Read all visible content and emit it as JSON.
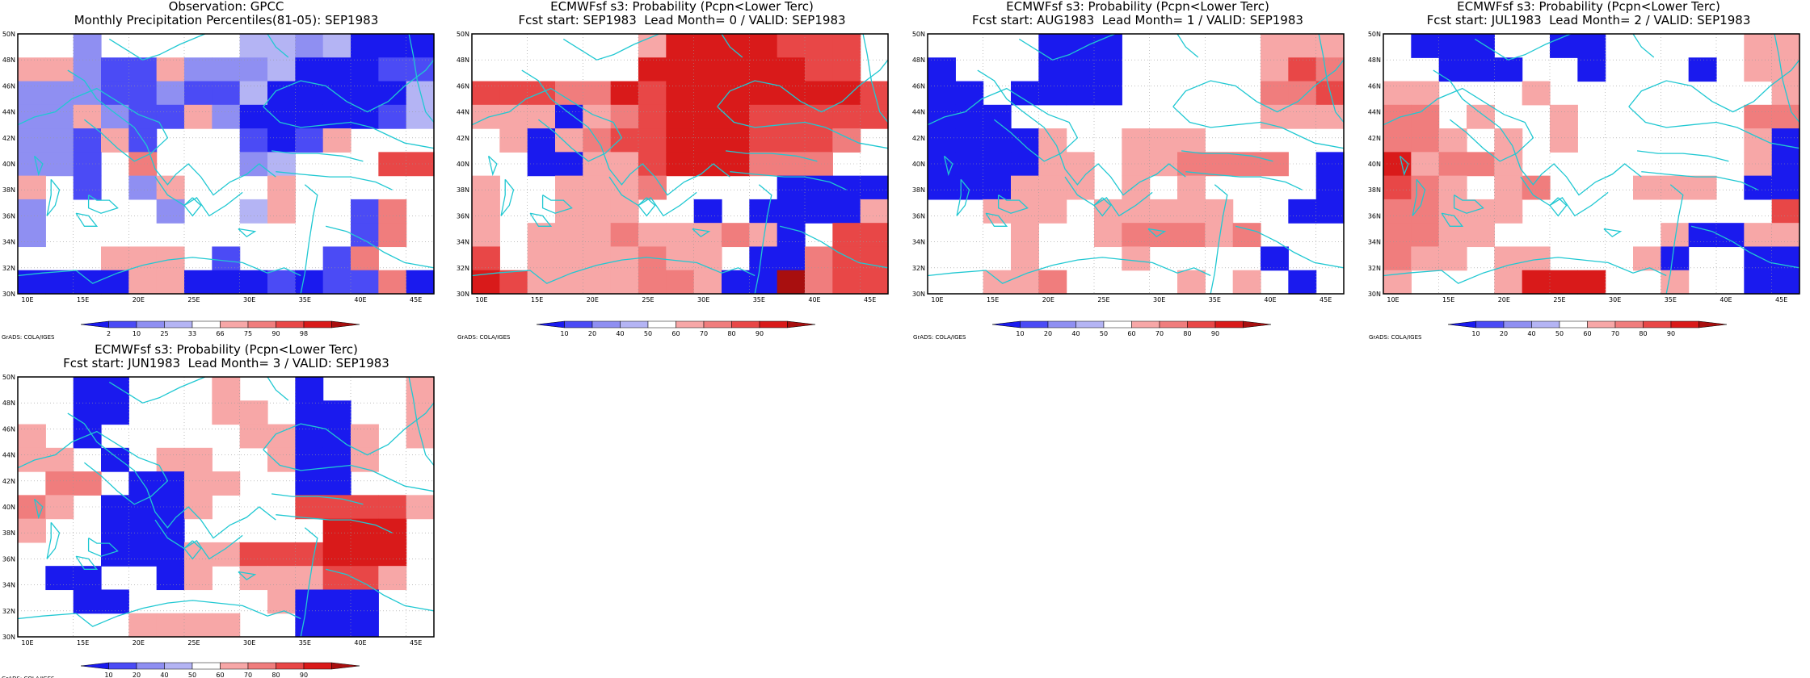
{
  "credit": "GrADS: COLA/IGES",
  "colors": {
    "blue_dark": "#1a1aee",
    "blue_mid": "#4b4bf5",
    "blue_light": "#8f8ff2",
    "blue_pale": "#b4b4f4",
    "red_pale": "#f7a7a7",
    "red_light": "#f07d7d",
    "red_mid": "#e84747",
    "red_strong": "#d91a1a",
    "red_dark": "#a80f0f",
    "coast": "#20c8d2"
  },
  "panels": [
    {
      "title_line1": "Observation: GPCC",
      "title_line2": "Monthly Precipitation Percentiles(81-05): SEP1983",
      "colorbar_labels": [
        "2",
        "10",
        "25",
        "33",
        "66",
        "75",
        "90",
        "98"
      ],
      "lat_labels": [
        "50N",
        "48N",
        "46N",
        "44N",
        "42N",
        "40N",
        "38N",
        "36N",
        "34N",
        "32N",
        "30N"
      ],
      "lon_labels": [
        "10E",
        "15E",
        "20E",
        "25E",
        "30E",
        "35E",
        "40E",
        "45E"
      ]
    },
    {
      "title_line1": "ECMWFsf s3: Probability (Pcpn<Lower Terc)",
      "title_line2": "Fcst start: SEP1983  Lead Month= 0 / VALID: SEP1983",
      "colorbar_labels": [
        "10",
        "20",
        "40",
        "50",
        "60",
        "70",
        "80",
        "90"
      ],
      "lat_labels": [
        "50N",
        "48N",
        "46N",
        "44N",
        "42N",
        "40N",
        "38N",
        "36N",
        "34N",
        "32N",
        "30N"
      ],
      "lon_labels": [
        "10E",
        "15E",
        "20E",
        "25E",
        "30E",
        "35E",
        "40E",
        "45E"
      ]
    },
    {
      "title_line1": "ECMWFsf s3: Probability (Pcpn<Lower Terc)",
      "title_line2": "Fcst start: AUG1983  Lead Month= 1 / VALID: SEP1983",
      "colorbar_labels": [
        "10",
        "20",
        "40",
        "50",
        "60",
        "70",
        "80",
        "90"
      ],
      "lat_labels": [
        "50N",
        "48N",
        "46N",
        "44N",
        "42N",
        "40N",
        "38N",
        "36N",
        "34N",
        "32N",
        "30N"
      ],
      "lon_labels": [
        "10E",
        "15E",
        "20E",
        "25E",
        "30E",
        "35E",
        "40E",
        "45E"
      ]
    },
    {
      "title_line1": "ECMWFsf s3: Probability (Pcpn<Lower Terc)",
      "title_line2": "Fcst start: JUL1983  Lead Month= 2 / VALID: SEP1983",
      "colorbar_labels": [
        "10",
        "20",
        "40",
        "50",
        "60",
        "70",
        "80",
        "90"
      ],
      "lat_labels": [
        "50N",
        "48N",
        "46N",
        "44N",
        "42N",
        "40N",
        "38N",
        "36N",
        "34N",
        "32N",
        "30N"
      ],
      "lon_labels": [
        "10E",
        "15E",
        "20E",
        "25E",
        "30E",
        "35E",
        "40E",
        "45E"
      ]
    },
    {
      "title_line1": "ECMWFsf s3: Probability (Pcpn<Lower Terc)",
      "title_line2": "Fcst start: JUN1983  Lead Month= 3 / VALID: SEP1983",
      "colorbar_labels": [
        "10",
        "20",
        "40",
        "50",
        "60",
        "70",
        "80",
        "90"
      ],
      "lat_labels": [
        "50N",
        "48N",
        "46N",
        "44N",
        "42N",
        "40N",
        "38N",
        "36N",
        "34N",
        "32N",
        "30N"
      ],
      "lon_labels": [
        "10E",
        "15E",
        "20E",
        "25E",
        "30E",
        "35E",
        "40E",
        "45E"
      ]
    }
  ]
}
